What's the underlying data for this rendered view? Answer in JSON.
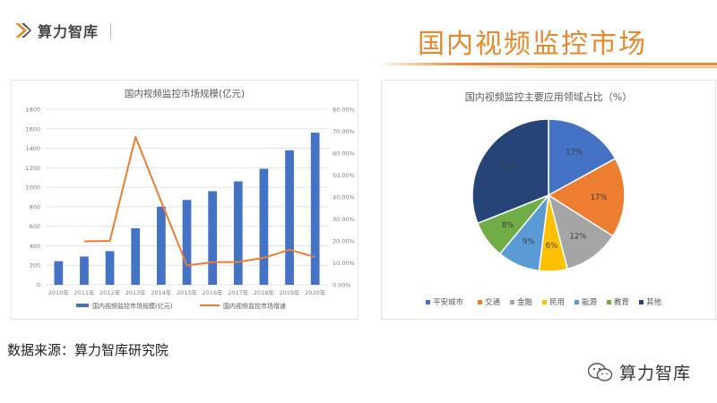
{
  "brand": {
    "name": "算力智库",
    "logo_icon": "abacus-logo-icon"
  },
  "page_title": "国内视频监控市场",
  "source_text": "数据来源：算力智库研究院",
  "footer": {
    "brand_name": "算力智库",
    "icon": "wechat-icon"
  },
  "colors": {
    "accent": "#E8892E",
    "bar": "#4472C4",
    "line": "#ED7D31"
  },
  "chart_data": [
    {
      "type": "bar",
      "title": "国内视频监控市场规模(亿元)",
      "categories": [
        "2010年",
        "2011年",
        "2012年",
        "2013年",
        "2014年",
        "2015年",
        "2016年",
        "2017年",
        "2018年",
        "2019年",
        "2020年"
      ],
      "series": [
        {
          "name": "国内视频监控市场规模(亿元)",
          "type": "bar",
          "axis": "left",
          "values": [
            242,
            290,
            345,
            580,
            800,
            870,
            960,
            1060,
            1190,
            1380,
            1560
          ]
        },
        {
          "name": "国内视频监控市场增速",
          "type": "line",
          "axis": "right",
          "values": [
            null,
            19.8,
            20.0,
            67.4,
            37.9,
            8.8,
            10.3,
            10.4,
            12.3,
            16.0,
            12.6
          ]
        }
      ],
      "ylim_left": [
        0,
        1800
      ],
      "yticks_left": [
        "0",
        "200",
        "400",
        "600",
        "800",
        "1000",
        "1200",
        "1400",
        "1600",
        "1800"
      ],
      "ylim_right": [
        0,
        80
      ],
      "yticks_right": [
        "0.00%",
        "10.00%",
        "20.00%",
        "30.00%",
        "40.00%",
        "50.00%",
        "60.00%",
        "70.00%",
        "80.00%"
      ],
      "grid": true,
      "legend_position": "bottom"
    },
    {
      "type": "pie",
      "title": "国内视频监控主要应用领域占比（%）",
      "labels": [
        "平安城市",
        "交通",
        "金融",
        "民用",
        "能源",
        "教育",
        "其他"
      ],
      "values": [
        17,
        17,
        12,
        6,
        9,
        8,
        31
      ],
      "value_labels": [
        "17%",
        "17%",
        "12%",
        "6%",
        "9%",
        "8%",
        "31%"
      ],
      "colors": [
        "#4472C4",
        "#ED7D31",
        "#A5A5A5",
        "#FFC000",
        "#5B9BD5",
        "#70AD47",
        "#264478"
      ],
      "legend_position": "bottom"
    }
  ]
}
